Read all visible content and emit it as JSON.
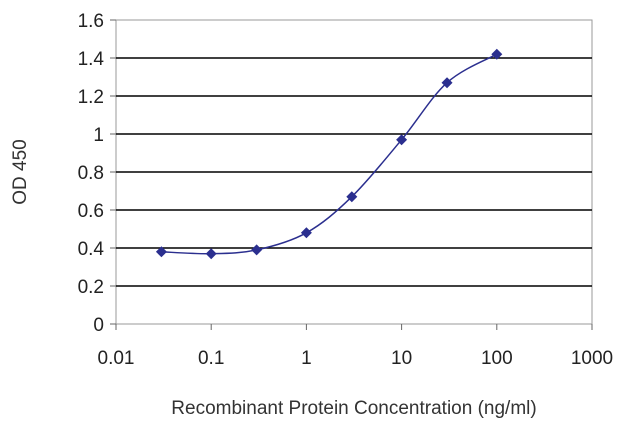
{
  "chart_data": {
    "type": "line",
    "title": "",
    "xlabel": "Recombinant Protein Concentration (ng/ml)",
    "ylabel": "OD 450",
    "x_scale": "log",
    "xlim": [
      0.01,
      1000
    ],
    "ylim": [
      0,
      1.6
    ],
    "x_ticks": [
      "0.01",
      "0.1",
      "1",
      "10",
      "100",
      "1000"
    ],
    "y_ticks": [
      "0",
      "0.2",
      "0.4",
      "0.6",
      "0.8",
      "1",
      "1.2",
      "1.4",
      "1.6"
    ],
    "grid": "horizontal",
    "legend": "none",
    "series": [
      {
        "color": "#2b2f8f",
        "x": [
          0.03,
          0.1,
          0.3,
          1,
          3,
          10,
          30,
          100
        ],
        "y": [
          0.38,
          0.37,
          0.39,
          0.48,
          0.67,
          0.97,
          1.27,
          1.42
        ]
      }
    ]
  }
}
